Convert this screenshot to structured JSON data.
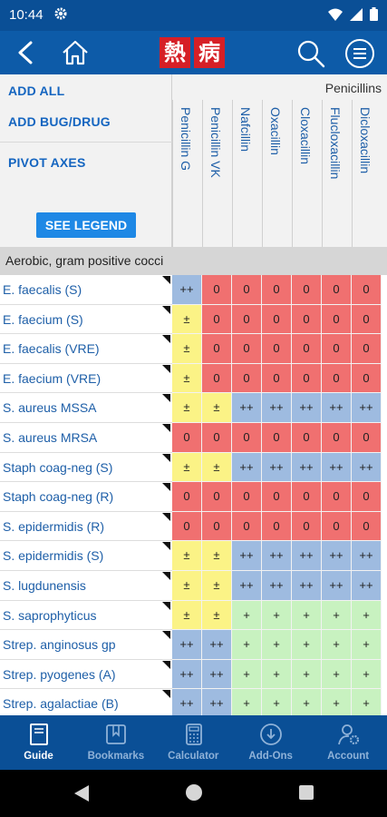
{
  "status_bar": {
    "time": "10:44"
  },
  "app_bar": {
    "logo_chars": [
      "熱",
      "病"
    ]
  },
  "controls": {
    "add_all": "ADD ALL",
    "add_bug_drug": "ADD BUG/DRUG",
    "pivot_axes": "PIVOT AXES",
    "see_legend": "SEE LEGEND"
  },
  "drug_group": "Penicillins",
  "drugs": [
    "Penicillin G",
    "Penicillin VK",
    "Nafcillin",
    "Oxacillin",
    "Cloxacillin",
    "Flucloxacillin",
    "Dicloxacillin"
  ],
  "section": {
    "title": "Aerobic, gram positive cocci"
  },
  "rows": [
    {
      "bug": "E. faecalis (S)",
      "cells": [
        "++",
        "0",
        "0",
        "0",
        "0",
        "0",
        "0"
      ]
    },
    {
      "bug": "E. faecium (S)",
      "cells": [
        "±",
        "0",
        "0",
        "0",
        "0",
        "0",
        "0"
      ]
    },
    {
      "bug": "E. faecalis (VRE)",
      "cells": [
        "±",
        "0",
        "0",
        "0",
        "0",
        "0",
        "0"
      ]
    },
    {
      "bug": "E. faecium (VRE)",
      "cells": [
        "±",
        "0",
        "0",
        "0",
        "0",
        "0",
        "0"
      ]
    },
    {
      "bug": "S. aureus MSSA",
      "cells": [
        "±",
        "±",
        "++",
        "++",
        "++",
        "++",
        "++"
      ]
    },
    {
      "bug": "S. aureus MRSA",
      "cells": [
        "0",
        "0",
        "0",
        "0",
        "0",
        "0",
        "0"
      ]
    },
    {
      "bug": "Staph coag-neg (S)",
      "cells": [
        "±",
        "±",
        "++",
        "++",
        "++",
        "++",
        "++"
      ]
    },
    {
      "bug": "Staph coag-neg (R)",
      "cells": [
        "0",
        "0",
        "0",
        "0",
        "0",
        "0",
        "0"
      ]
    },
    {
      "bug": "S. epidermidis (R)",
      "cells": [
        "0",
        "0",
        "0",
        "0",
        "0",
        "0",
        "0"
      ]
    },
    {
      "bug": "S. epidermidis (S)",
      "cells": [
        "±",
        "±",
        "++",
        "++",
        "++",
        "++",
        "++"
      ]
    },
    {
      "bug": "S. lugdunensis",
      "cells": [
        "±",
        "±",
        "++",
        "++",
        "++",
        "++",
        "++"
      ]
    },
    {
      "bug": "S. saprophyticus",
      "cells": [
        "±",
        "±",
        "+",
        "+",
        "+",
        "+",
        "+"
      ]
    },
    {
      "bug": "Strep. anginosus gp",
      "cells": [
        "++",
        "++",
        "+",
        "+",
        "+",
        "+",
        "+"
      ]
    },
    {
      "bug": "Strep. pyogenes (A)",
      "cells": [
        "++",
        "++",
        "+",
        "+",
        "+",
        "+",
        "+"
      ]
    },
    {
      "bug": "Strep. agalactiae (B)",
      "cells": [
        "++",
        "++",
        "+",
        "+",
        "+",
        "+",
        "+"
      ]
    }
  ],
  "bottom_nav": [
    {
      "label": "Guide",
      "icon": "book-icon",
      "active": true
    },
    {
      "label": "Bookmarks",
      "icon": "bookmark-icon",
      "active": false
    },
    {
      "label": "Calculator",
      "icon": "calculator-icon",
      "active": false
    },
    {
      "label": "Add-Ons",
      "icon": "download-icon",
      "active": false
    },
    {
      "label": "Account",
      "icon": "account-gear-icon",
      "active": false
    }
  ],
  "colors": {
    "very_active": "#9ebbe0",
    "active": "#c8f2c0",
    "variable": "#fbf386",
    "not_active": "#f07070"
  }
}
